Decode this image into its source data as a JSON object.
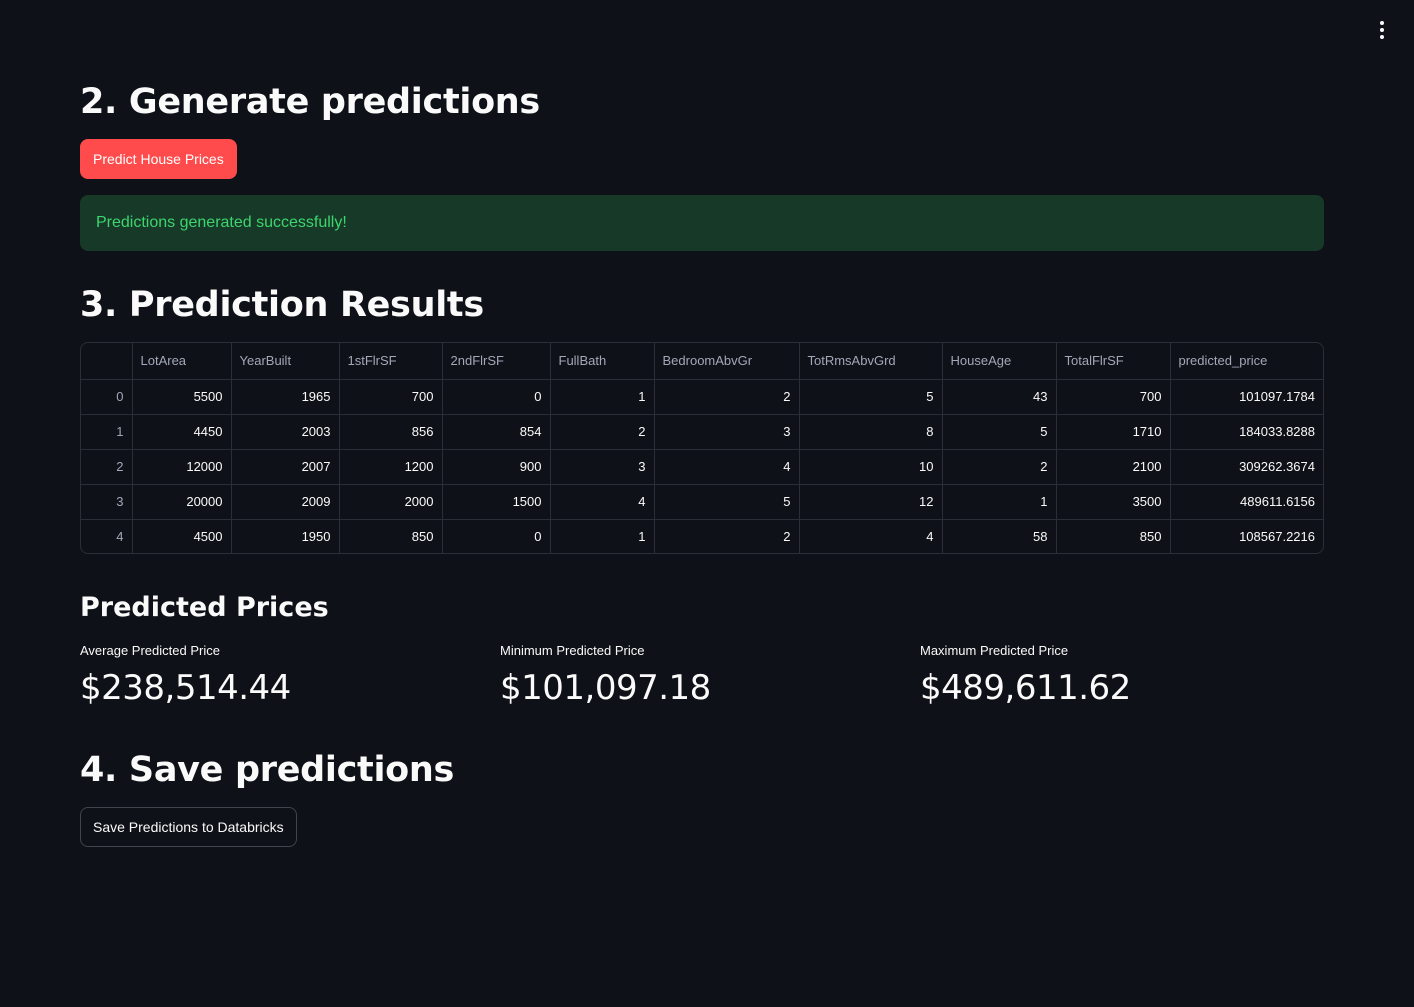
{
  "sections": {
    "generate": {
      "title": "2. Generate predictions",
      "button_label": "Predict House Prices",
      "success_message": "Predictions generated successfully!"
    },
    "results": {
      "title": "3. Prediction Results",
      "columns": [
        "",
        "LotArea",
        "YearBuilt",
        "1stFlrSF",
        "2ndFlrSF",
        "FullBath",
        "BedroomAbvGr",
        "TotRmsAbvGrd",
        "HouseAge",
        "TotalFlrSF",
        "predicted_price"
      ],
      "rows": [
        [
          "0",
          "5500",
          "1965",
          "700",
          "0",
          "1",
          "2",
          "5",
          "43",
          "700",
          "101097.1784"
        ],
        [
          "1",
          "4450",
          "2003",
          "856",
          "854",
          "2",
          "3",
          "8",
          "5",
          "1710",
          "184033.8288"
        ],
        [
          "2",
          "12000",
          "2007",
          "1200",
          "900",
          "3",
          "4",
          "10",
          "2",
          "2100",
          "309262.3674"
        ],
        [
          "3",
          "20000",
          "2009",
          "2000",
          "1500",
          "4",
          "5",
          "12",
          "1",
          "3500",
          "489611.6156"
        ],
        [
          "4",
          "4500",
          "1950",
          "850",
          "0",
          "1",
          "2",
          "4",
          "58",
          "850",
          "108567.2216"
        ]
      ]
    },
    "predicted_prices": {
      "title": "Predicted Prices",
      "metrics": [
        {
          "label": "Average Predicted Price",
          "value": "$238,514.44"
        },
        {
          "label": "Minimum Predicted Price",
          "value": "$101,097.18"
        },
        {
          "label": "Maximum Predicted Price",
          "value": "$489,611.62"
        }
      ]
    },
    "save": {
      "title": "4. Save predictions",
      "button_label": "Save Predictions to Databricks"
    }
  },
  "icons": {
    "menu": "vertical-dots-icon"
  },
  "colors": {
    "background": "#0e1117",
    "primary": "#ff4b4b",
    "success_bg": "#173928",
    "success_text": "#3dd56d"
  }
}
